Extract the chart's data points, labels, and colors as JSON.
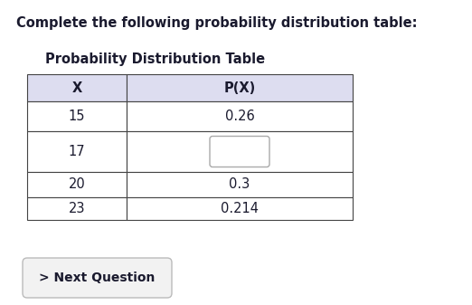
{
  "title_text": "Complete the following probability distribution table:",
  "table_title": "Probability Distribution Table",
  "col_headers": [
    "X",
    "P(X)"
  ],
  "rows": [
    [
      "15",
      "0.26"
    ],
    [
      "17",
      ""
    ],
    [
      "20",
      "0.3"
    ],
    [
      "23",
      "0.214"
    ]
  ],
  "header_bg": "#ddddf0",
  "table_border_color": "#444444",
  "cell_bg": "#ffffff",
  "blank_cell_row": 1,
  "button_text": "> Next Question",
  "bg_color": "#ffffff",
  "title_fontsize": 10.5,
  "table_title_fontsize": 10.5,
  "cell_fontsize": 10.5,
  "fig_width": 5.22,
  "fig_height": 3.37,
  "dpi": 100
}
